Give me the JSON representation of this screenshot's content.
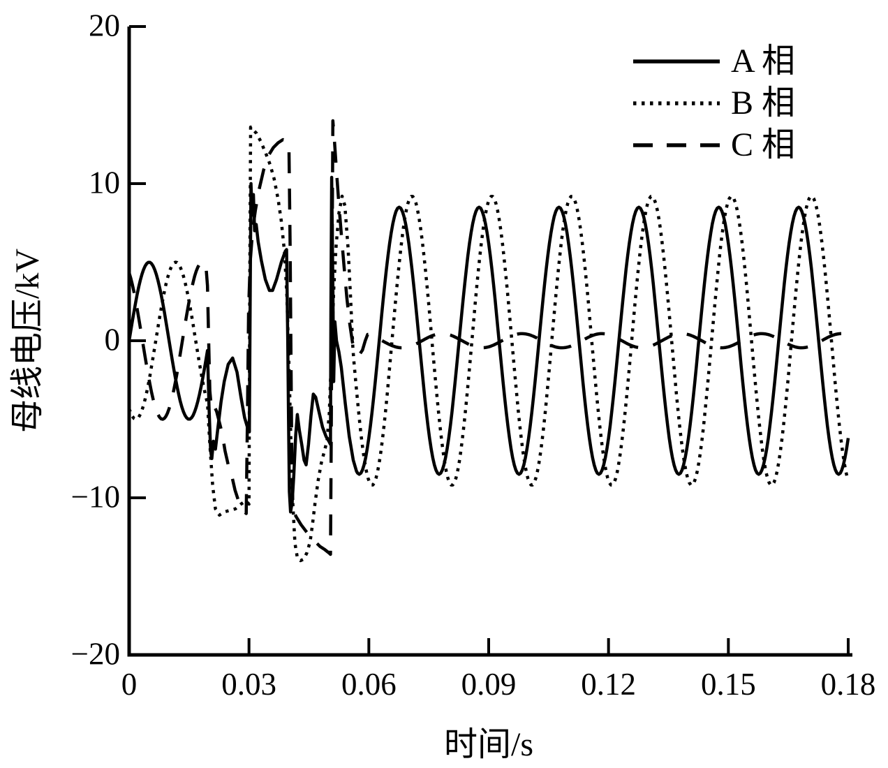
{
  "figure": {
    "background": "#ffffff",
    "ink": "#000000"
  },
  "chart_data": {
    "type": "line",
    "title": "",
    "xlabel": "时间/s",
    "ylabel": "母线电压/kV",
    "xlim": [
      0,
      0.18
    ],
    "ylim": [
      -20,
      20
    ],
    "grid": false,
    "legend_position": "top-right",
    "xticks": [
      0,
      0.03,
      0.06,
      0.09,
      0.12,
      0.15,
      0.18
    ],
    "xtick_labels": [
      "0",
      "0.03",
      "0.06",
      "0.09",
      "0.12",
      "0.15",
      "0.18"
    ],
    "yticks": [
      -20,
      -10,
      0,
      10,
      20
    ],
    "ytick_labels": [
      "−20",
      "−10",
      "0",
      "10",
      "20"
    ],
    "legend": [
      {
        "label": "A 相",
        "style": "solid"
      },
      {
        "label": "B 相",
        "style": "dotted"
      },
      {
        "label": "C 相",
        "style": "dashed"
      }
    ],
    "frequency_hz": 50,
    "sample_step_s": 0.0004,
    "series": [
      {
        "name": "A 相",
        "style": "solid",
        "segments": [
          {
            "type": "sine",
            "t0": 0,
            "t1": 0.0196,
            "amp": 5,
            "freq": 50,
            "phase_deg": 0
          },
          {
            "type": "points",
            "pts": [
              [
                0.02,
                -4.2
              ],
              [
                0.0204,
                -7.0
              ],
              [
                0.0207,
                -7.5
              ],
              [
                0.0211,
                -6.4
              ],
              [
                0.0216,
                -6.9
              ],
              [
                0.0222,
                -5.6
              ],
              [
                0.023,
                -3.9
              ],
              [
                0.0238,
                -2.6
              ],
              [
                0.0248,
                -1.5
              ],
              [
                0.0259,
                -1.1
              ],
              [
                0.027,
                -2.0
              ],
              [
                0.028,
                -3.6
              ],
              [
                0.0289,
                -4.9
              ],
              [
                0.0296,
                -5.5
              ],
              [
                0.0301,
                -5.8
              ],
              [
                0.0303,
                3.0
              ],
              [
                0.0305,
                10.0
              ],
              [
                0.0308,
                8.0
              ],
              [
                0.0311,
                9.3
              ],
              [
                0.0314,
                7.0
              ],
              [
                0.0318,
                7.4
              ],
              [
                0.0323,
                6.3
              ],
              [
                0.0331,
                5.1
              ],
              [
                0.0341,
                3.9
              ],
              [
                0.0351,
                3.2
              ],
              [
                0.0359,
                3.2
              ],
              [
                0.0369,
                3.9
              ],
              [
                0.0381,
                5.0
              ],
              [
                0.0391,
                5.7
              ],
              [
                0.0394,
                5.8
              ],
              [
                0.0397,
                0.0
              ],
              [
                0.0399,
                -5.0
              ],
              [
                0.0401,
                -9.6
              ],
              [
                0.0404,
                -10.9
              ],
              [
                0.0408,
                -10.3
              ],
              [
                0.0412,
                -8.6
              ],
              [
                0.0417,
                -6.0
              ],
              [
                0.0421,
                -4.7
              ],
              [
                0.0426,
                -5.7
              ],
              [
                0.0432,
                -6.6
              ],
              [
                0.0438,
                -7.6
              ],
              [
                0.0443,
                -7.9
              ],
              [
                0.0449,
                -6.6
              ],
              [
                0.0455,
                -4.8
              ],
              [
                0.0461,
                -3.4
              ],
              [
                0.0467,
                -3.6
              ],
              [
                0.0475,
                -4.5
              ],
              [
                0.0484,
                -5.5
              ],
              [
                0.0493,
                -6.1
              ],
              [
                0.05,
                -6.4
              ],
              [
                0.0504,
                -6.6
              ],
              [
                0.0505,
                2.0
              ],
              [
                0.0507,
                10.4
              ],
              [
                0.051,
                3.5
              ],
              [
                0.0512,
                -2.6
              ],
              [
                0.0515,
                1.2
              ],
              [
                0.0519,
                0.0
              ],
              [
                0.0525,
                -0.7
              ],
              [
                0.0531,
                -1.7
              ],
              [
                0.0541,
                -4.0
              ],
              [
                0.0551,
                -6.1
              ],
              [
                0.0561,
                -7.6
              ],
              [
                0.0569,
                -8.3
              ]
            ]
          },
          {
            "type": "sine",
            "t0": 0.0572,
            "t1": 0.18,
            "amp": 8.5,
            "freq": 50,
            "phase_deg": -46.8
          }
        ]
      },
      {
        "name": "B 相",
        "style": "dotted",
        "segments": [
          {
            "type": "sine",
            "t0": 0,
            "t1": 0.0196,
            "amp": 5,
            "freq": 50,
            "phase_deg": -120
          },
          {
            "type": "points",
            "pts": [
              [
                0.0202,
                -6.6
              ],
              [
                0.0209,
                -9.2
              ],
              [
                0.0216,
                -10.7
              ],
              [
                0.0226,
                -11.1
              ],
              [
                0.0238,
                -10.9
              ],
              [
                0.0252,
                -10.8
              ],
              [
                0.0266,
                -10.7
              ],
              [
                0.028,
                -10.4
              ],
              [
                0.0292,
                -10.2
              ],
              [
                0.03,
                -10.4
              ],
              [
                0.0302,
                4.0
              ],
              [
                0.0304,
                13.6
              ],
              [
                0.0311,
                13.4
              ],
              [
                0.0319,
                13.2
              ],
              [
                0.0329,
                12.7
              ],
              [
                0.0341,
                12.0
              ],
              [
                0.0353,
                11.2
              ],
              [
                0.0363,
                10.3
              ],
              [
                0.0373,
                9.0
              ],
              [
                0.0381,
                7.6
              ],
              [
                0.0389,
                5.6
              ],
              [
                0.0395,
                2.8
              ],
              [
                0.04,
                -1.5
              ],
              [
                0.0405,
                -6.5
              ],
              [
                0.041,
                -10.5
              ],
              [
                0.0415,
                -12.9
              ],
              [
                0.0421,
                -13.8
              ],
              [
                0.0429,
                -14.0
              ],
              [
                0.0437,
                -13.9
              ],
              [
                0.0445,
                -13.5
              ],
              [
                0.0453,
                -12.8
              ],
              [
                0.0459,
                -11.7
              ],
              [
                0.0465,
                -10.4
              ],
              [
                0.0473,
                -8.9
              ],
              [
                0.0481,
                -7.8
              ],
              [
                0.0489,
                -7.0
              ],
              [
                0.0495,
                -6.4
              ],
              [
                0.0501,
                -4.6
              ],
              [
                0.0507,
                -0.5
              ],
              [
                0.0512,
                3.2
              ],
              [
                0.0518,
                6.0
              ],
              [
                0.0525,
                8.1
              ],
              [
                0.0533,
                9.2
              ],
              [
                0.054,
                8.6
              ],
              [
                0.0548,
                5.9
              ],
              [
                0.0554,
                2.9
              ],
              [
                0.056,
                -0.4
              ]
            ]
          },
          {
            "type": "sine",
            "t0": 0.0562,
            "t1": 0.18,
            "amp": 9.2,
            "freq": 50,
            "phase_deg": -104.4
          }
        ]
      },
      {
        "name": "C 相",
        "style": "dashed",
        "segments": [
          {
            "type": "sine",
            "t0": 0,
            "t1": 0.0192,
            "amp": 5,
            "freq": 50,
            "phase_deg": 120
          },
          {
            "type": "points",
            "pts": [
              [
                0.0196,
                3.5
              ],
              [
                0.0199,
                0.0
              ],
              [
                0.0202,
                -3.2
              ],
              [
                0.0206,
                -4.3
              ],
              [
                0.0212,
                -4.1
              ],
              [
                0.0219,
                -4.5
              ],
              [
                0.0226,
                -5.2
              ],
              [
                0.0233,
                -5.9
              ],
              [
                0.024,
                -7.0
              ],
              [
                0.0248,
                -7.9
              ],
              [
                0.0256,
                -8.5
              ],
              [
                0.0265,
                -9.5
              ],
              [
                0.0275,
                -10.3
              ],
              [
                0.0285,
                -10.8
              ],
              [
                0.0293,
                -11.0
              ],
              [
                0.0296,
                -5.0
              ],
              [
                0.0299,
                2.0
              ],
              [
                0.0303,
                5.0
              ],
              [
                0.0309,
                7.0
              ],
              [
                0.0316,
                8.3
              ],
              [
                0.0325,
                9.6
              ],
              [
                0.0337,
                10.9
              ],
              [
                0.0349,
                11.8
              ],
              [
                0.0361,
                12.3
              ],
              [
                0.0373,
                12.6
              ],
              [
                0.0385,
                12.8
              ],
              [
                0.0396,
                12.7
              ],
              [
                0.04,
                12.4
              ],
              [
                0.0403,
                6.0
              ],
              [
                0.0405,
                -1.0
              ],
              [
                0.0407,
                -7.0
              ],
              [
                0.041,
                -10.8
              ],
              [
                0.0418,
                -11.2
              ],
              [
                0.043,
                -11.7
              ],
              [
                0.0442,
                -12.1
              ],
              [
                0.0454,
                -12.5
              ],
              [
                0.0466,
                -12.8
              ],
              [
                0.0478,
                -13.1
              ],
              [
                0.049,
                -13.3
              ],
              [
                0.05,
                -13.5
              ],
              [
                0.0504,
                -13.6
              ],
              [
                0.0506,
                -6.0
              ],
              [
                0.0508,
                5.0
              ],
              [
                0.051,
                14.0
              ],
              [
                0.0514,
                12.7
              ],
              [
                0.0519,
                10.8
              ],
              [
                0.0525,
                8.7
              ],
              [
                0.0531,
                6.8
              ],
              [
                0.0538,
                4.7
              ],
              [
                0.0545,
                2.7
              ],
              [
                0.0552,
                1.1
              ],
              [
                0.0559,
                -0.1
              ],
              [
                0.0567,
                -0.7
              ],
              [
                0.0576,
                -0.9
              ],
              [
                0.0584,
                -0.6
              ],
              [
                0.0591,
                0.0
              ],
              [
                0.0597,
                0.4
              ]
            ]
          },
          {
            "type": "sine",
            "t0": 0.06,
            "t1": 0.18,
            "amp": 0.45,
            "freq": 50,
            "phase_deg": 120
          }
        ]
      }
    ]
  }
}
